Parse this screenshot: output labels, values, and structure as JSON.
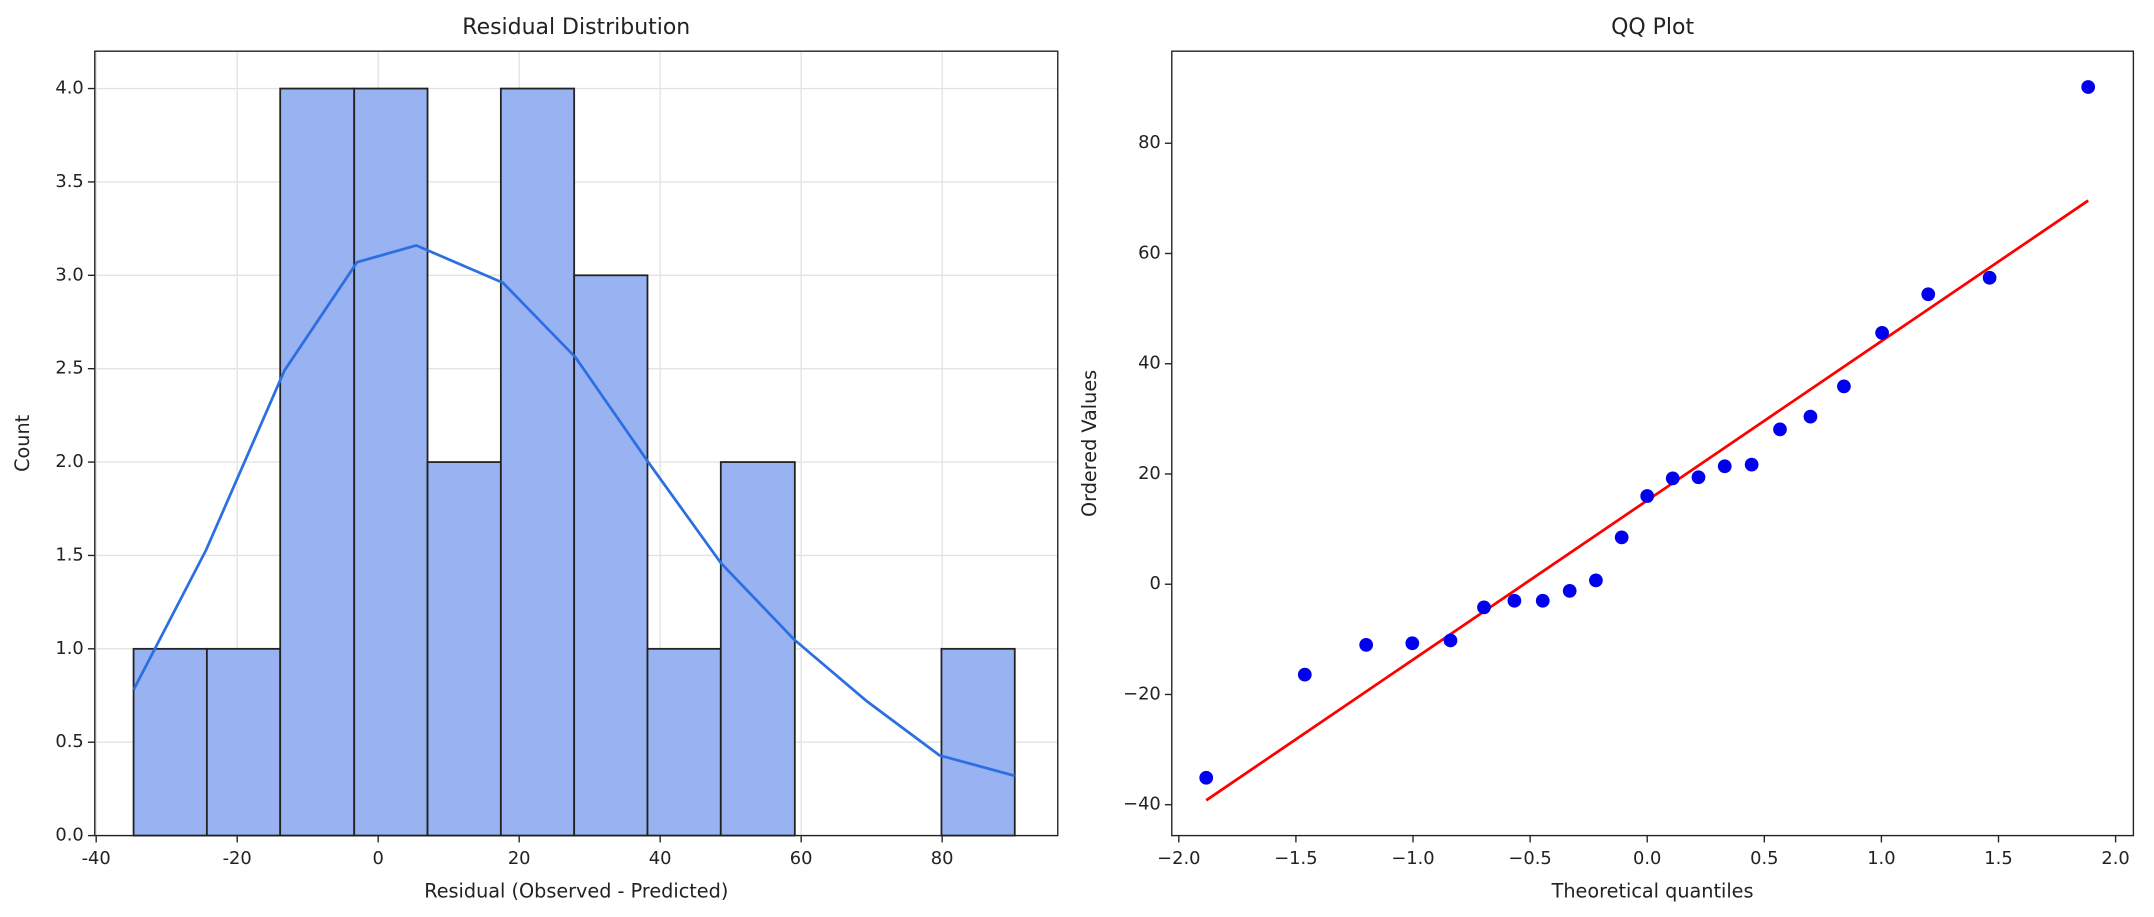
{
  "chart_data": [
    {
      "type": "histogram",
      "title": "Residual Distribution",
      "xlabel": "Residual (Observed - Predicted)",
      "ylabel": "Count",
      "bins": [
        -34.7,
        -24.3,
        -13.9,
        -3.4,
        7.0,
        17.4,
        27.8,
        38.2,
        48.6,
        59.1,
        69.5,
        79.9,
        90.3
      ],
      "counts": [
        1,
        1,
        4,
        4,
        2,
        4,
        3,
        1,
        2,
        0,
        0,
        1
      ],
      "color": "#98b2f2",
      "edgecolor": "#222222",
      "kde": {
        "color": "#2b6fe0",
        "x": [
          -34.7,
          -24.4,
          -13.3,
          -3,
          5.4,
          17.7,
          28,
          38.3,
          48.6,
          59,
          69.3,
          79.6,
          90.3
        ],
        "values": [
          0.78,
          1.53,
          2.49,
          3.07,
          3.16,
          2.96,
          2.56,
          2.0,
          1.46,
          1.05,
          0.72,
          0.43,
          0.32
        ]
      },
      "xlim": [
        -40.2,
        96.4
      ],
      "ylim": [
        0,
        4.2
      ],
      "xticks": [
        -40,
        -20,
        0,
        20,
        40,
        60,
        80
      ],
      "yticks": [
        {
          "value": 0,
          "label": "0.0"
        },
        0.5,
        {
          "value": 1,
          "label": "1.0"
        },
        1.5,
        {
          "value": 2,
          "label": "2.0"
        },
        2.5,
        {
          "value": 3,
          "label": "3.0"
        },
        3.5,
        {
          "value": 4,
          "label": "4.0"
        }
      ],
      "grid": true
    },
    {
      "type": "scatter",
      "title": "QQ Plot",
      "xlabel": "Theoretical quantiles",
      "ylabel": "Ordered Values",
      "x": [
        -1.883,
        -1.462,
        -1.2,
        -1.003,
        -0.84,
        -0.697,
        -0.567,
        -0.446,
        -0.331,
        -0.219,
        -0.109,
        0,
        0.109,
        0.219,
        0.331,
        0.446,
        0.567,
        0.697,
        0.84,
        1.003,
        1.2,
        1.462,
        1.883
      ],
      "values": [
        -35.1,
        -16.4,
        -11.0,
        -10.7,
        -10.2,
        -4.2,
        -3.0,
        -3.0,
        -1.2,
        0.7,
        8.5,
        16.0,
        19.2,
        19.4,
        21.4,
        21.7,
        28.1,
        30.4,
        35.9,
        45.6,
        52.6,
        55.6,
        90.2
      ],
      "color": "#0000ee",
      "fit_line": {
        "color": "#ff0000",
        "x": [
          -1.883,
          1.883
        ],
        "values": [
          -39.2,
          69.6
        ]
      },
      "xlim": [
        -2.03,
        2.076
      ],
      "ylim": [
        -45.6,
        96.7
      ],
      "xticks": [
        {
          "value": -2,
          "label": "−2.0"
        },
        {
          "value": -1.5,
          "label": "−1.5"
        },
        {
          "value": -1,
          "label": "−1.0"
        },
        {
          "value": -0.5,
          "label": "−0.5"
        },
        {
          "value": 0,
          "label": "0.0"
        },
        0.5,
        {
          "value": 1,
          "label": "1.0"
        },
        1.5,
        {
          "value": 2,
          "label": "2.0"
        }
      ],
      "yticks": [
        {
          "value": -40,
          "label": "−40"
        },
        {
          "value": -20,
          "label": "−20"
        },
        0,
        20,
        40,
        60,
        80
      ],
      "grid": false
    }
  ]
}
